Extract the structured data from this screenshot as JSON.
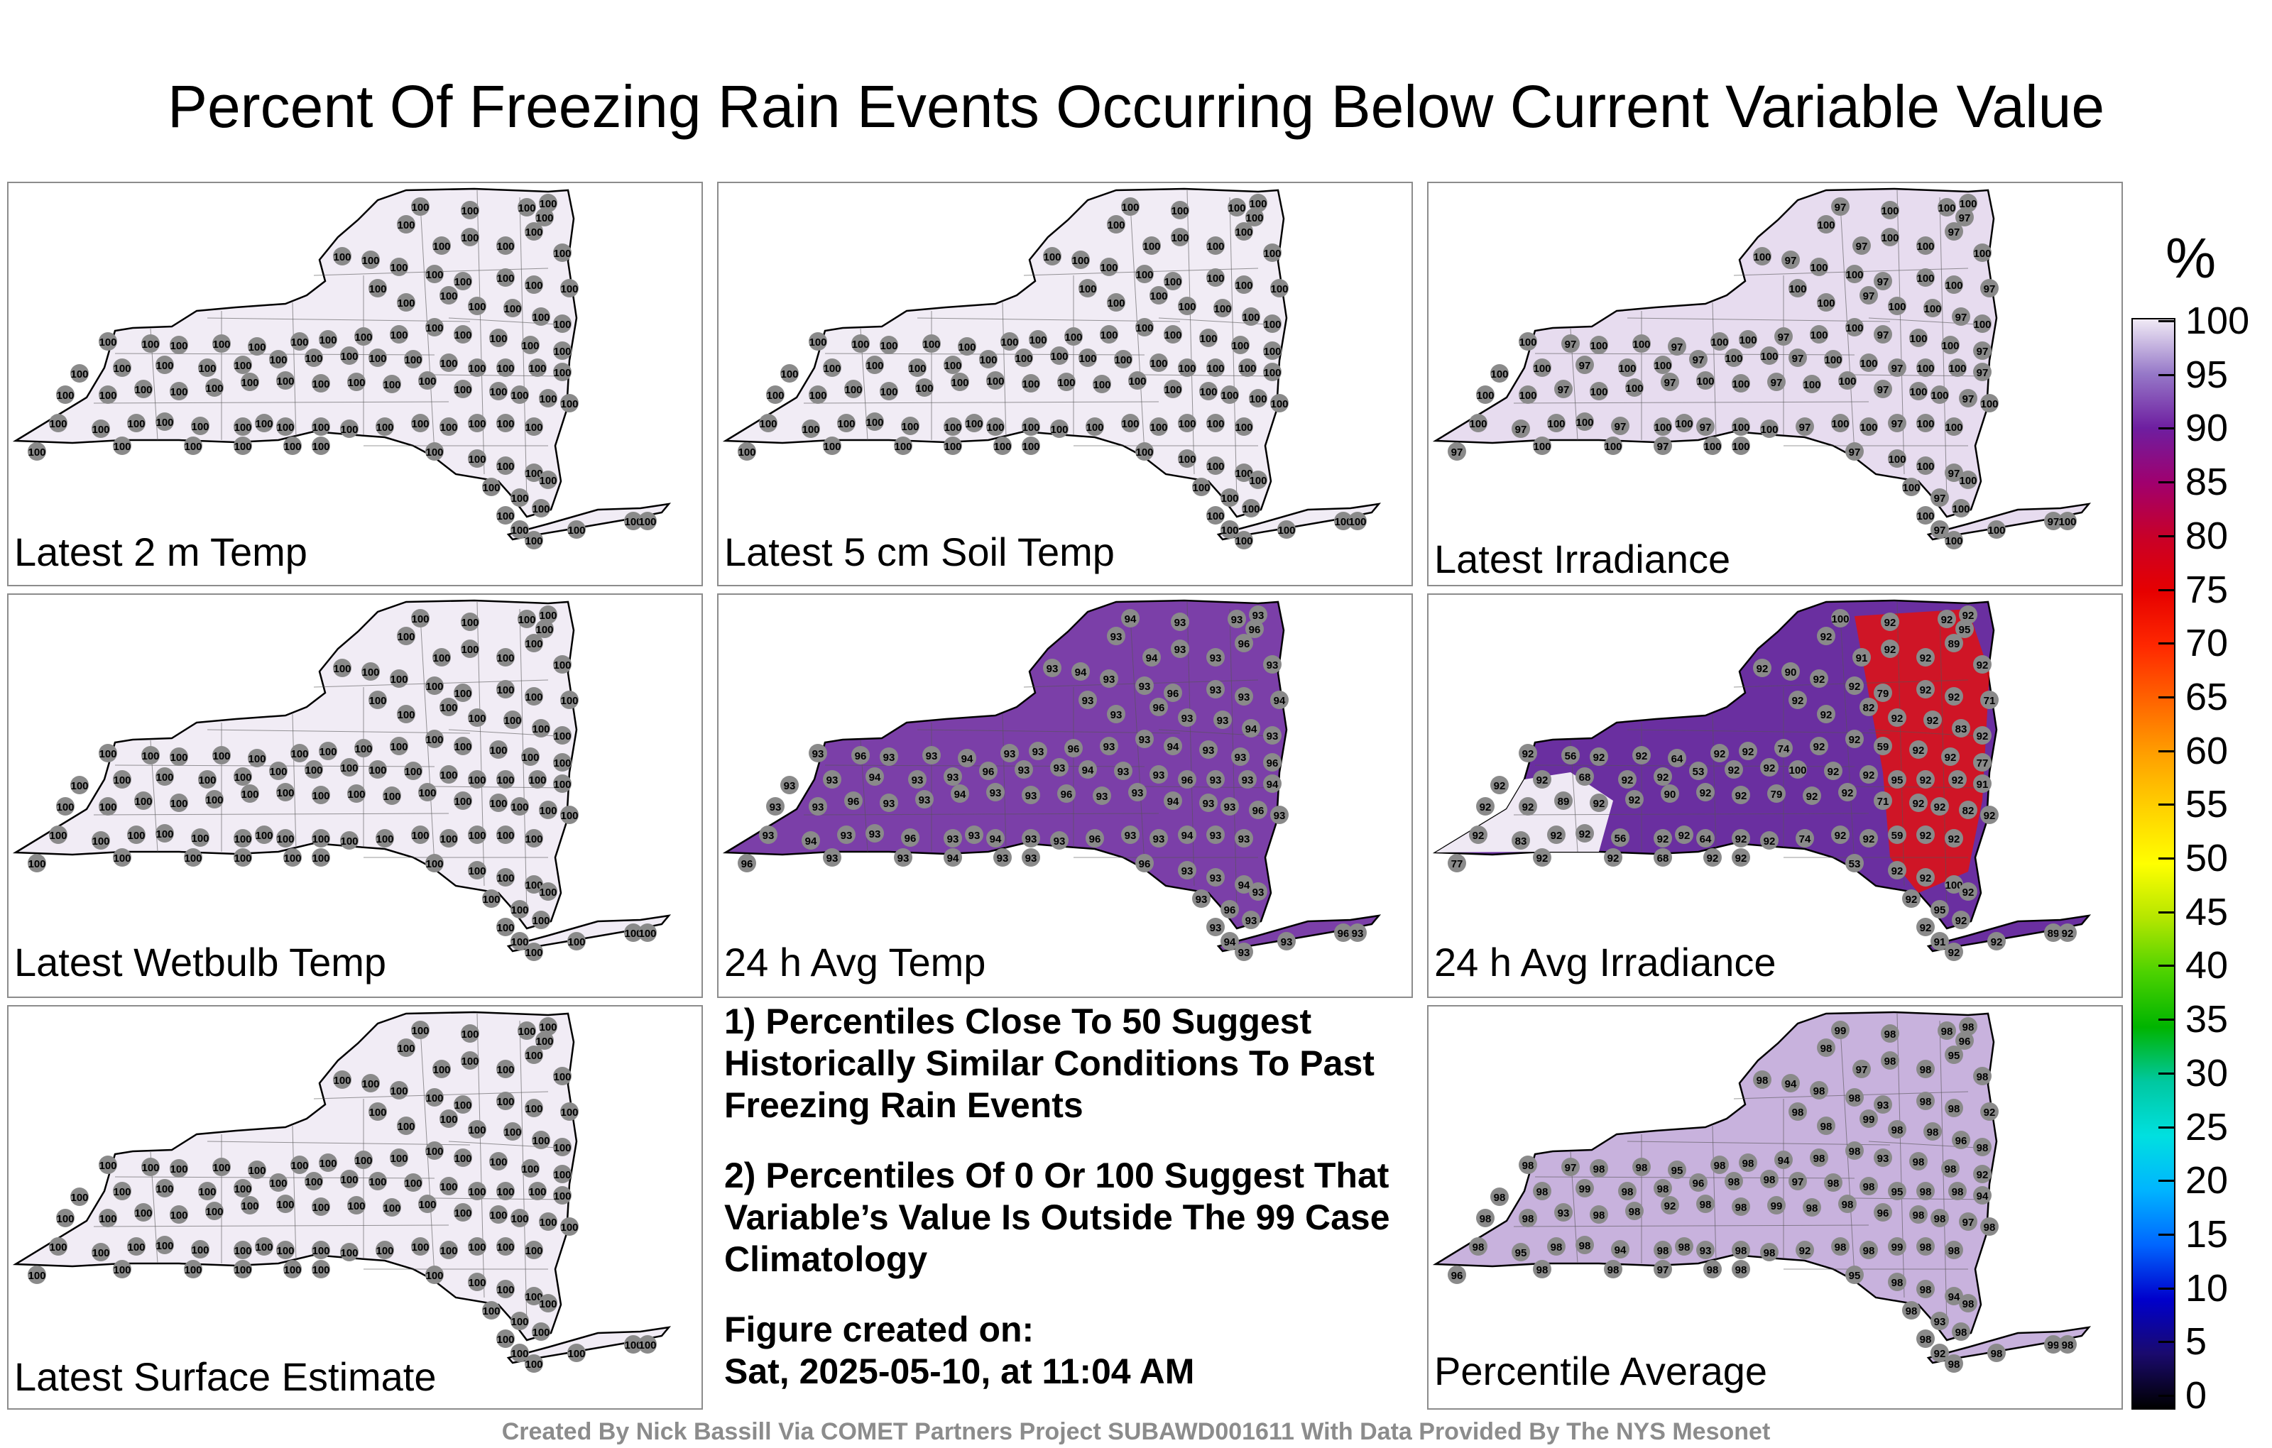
{
  "title": "Percent Of Freezing Rain Events Occurring Below Current Variable Value",
  "panels": [
    {
      "label": "Latest 2 m Temp",
      "fill": "#f1ecf5",
      "station_value": "100",
      "alt_values": []
    },
    {
      "label": "Latest 5 cm Soil Temp",
      "fill": "#f1ecf5",
      "station_value": "100",
      "alt_values": []
    },
    {
      "label": "Latest Irradiance",
      "fill": "#e7dcef",
      "station_value": "100",
      "alt_values": [
        "97"
      ]
    },
    {
      "label": "Latest Wetbulb Temp",
      "fill": "#f1ecf5",
      "station_value": "100",
      "alt_values": []
    },
    {
      "label": "24 h Avg Temp",
      "fill": "#7b3fa8",
      "station_value": "93",
      "alt_values": [
        "94",
        "96"
      ]
    },
    {
      "label": "24 h Avg Irradiance",
      "fill": "#6a2fa0",
      "station_value": "92",
      "alt_values": [
        "100",
        "95",
        "91",
        "89",
        "90",
        "79",
        "71",
        "82",
        "83",
        "56",
        "64",
        "74",
        "59",
        "77",
        "68",
        "53"
      ]
    },
    {
      "label": "Latest Surface Estimate",
      "fill": "#f1ecf5",
      "station_value": "100",
      "alt_values": []
    },
    {
      "label": "Percentile Average",
      "fill": "#c8b2dd",
      "station_value": "98",
      "alt_values": [
        "99",
        "96",
        "97",
        "95",
        "94",
        "93",
        "92"
      ]
    }
  ],
  "notes": {
    "note1": "1) Percentiles Close To 50 Suggest Historically Similar Conditions To Past Freezing Rain Events",
    "note2": "2) Percentiles Of 0 Or 100 Suggest That Variable’s Value Is Outside The 99 Case Climatology",
    "fig_line1": "Figure created on:",
    "fig_line2": "Sat, 2025-05-10, at 11:04 AM"
  },
  "credit": "Created By Nick Bassill Via COMET Partners Project SUBAWD001611 With Data Provided By The NYS Mesonet",
  "colorbar": {
    "unit": "%",
    "ticks": [
      "0",
      "5",
      "10",
      "15",
      "20",
      "25",
      "30",
      "35",
      "40",
      "45",
      "50",
      "55",
      "60",
      "65",
      "70",
      "75",
      "80",
      "85",
      "90",
      "95",
      "100"
    ],
    "colors": [
      "#000000",
      "#1a0a6e",
      "#0000cc",
      "#0066ff",
      "#00b4ff",
      "#00e0e0",
      "#00c8a0",
      "#00b400",
      "#4cd200",
      "#b4e600",
      "#ffff00",
      "#ffd200",
      "#ffa000",
      "#ff6400",
      "#ff2800",
      "#e60000",
      "#c80028",
      "#a0006e",
      "#6e1ea0",
      "#9678c8",
      "#f0eaf5"
    ]
  }
}
